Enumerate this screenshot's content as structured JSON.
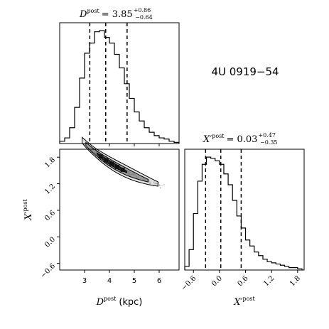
{
  "source_name": "4U 0919−54",
  "chart_data": [
    {
      "type": "histogram",
      "panel": "top-left",
      "title_var": "D",
      "title_sup": "post",
      "title_eq": "= 3.85",
      "title_err_up": "+0.86",
      "title_err_down": "−0.64",
      "xlim": [
        2.0,
        6.8
      ],
      "quantile_lines": [
        3.21,
        3.85,
        4.71
      ],
      "bin_edges": [
        2.0,
        2.2,
        2.4,
        2.6,
        2.8,
        3.0,
        3.2,
        3.4,
        3.6,
        3.8,
        4.0,
        4.2,
        4.4,
        4.6,
        4.8,
        5.0,
        5.2,
        5.4,
        5.6,
        5.8,
        6.0,
        6.2,
        6.4,
        6.6,
        6.8
      ],
      "counts": [
        2,
        5,
        14,
        32,
        58,
        80,
        89,
        99,
        100,
        94,
        89,
        79,
        67,
        53,
        40,
        28,
        20,
        14,
        10,
        7,
        5,
        4,
        2,
        1
      ]
    },
    {
      "type": "histogram",
      "panel": "bottom-right",
      "title_var": "X′",
      "title_sup": "post",
      "title_eq": "= 0.03",
      "title_err_up": "+0.47",
      "title_err_down": "−0.35",
      "xlim": [
        -0.8,
        1.95
      ],
      "xticks": [
        {
          "v": -0.6,
          "label": "−0.6"
        },
        {
          "v": 0.0,
          "label": "0.0"
        },
        {
          "v": 0.6,
          "label": "0.6"
        },
        {
          "v": 1.2,
          "label": "1.2"
        },
        {
          "v": 1.8,
          "label": "1.8"
        }
      ],
      "xlabel_var": "X′",
      "xlabel_sup": "post",
      "quantile_lines": [
        -0.32,
        0.03,
        0.5
      ],
      "bin_edges": [
        -0.8,
        -0.7,
        -0.6,
        -0.5,
        -0.4,
        -0.3,
        -0.2,
        -0.1,
        0.0,
        0.1,
        0.2,
        0.3,
        0.4,
        0.5,
        0.6,
        0.7,
        0.8,
        0.9,
        1.0,
        1.1,
        1.2,
        1.3,
        1.4,
        1.5,
        1.6,
        1.7,
        1.8,
        1.9
      ],
      "counts": [
        3,
        17,
        47,
        74,
        88,
        94,
        93,
        91,
        88,
        80,
        71,
        58,
        45,
        35,
        25,
        20,
        15,
        12,
        9,
        7,
        6,
        5,
        4,
        3,
        2,
        2,
        1
      ]
    },
    {
      "type": "scatter-density",
      "panel": "bottom-left",
      "xlim": [
        2.0,
        6.8
      ],
      "ylim": [
        -0.75,
        1.98
      ],
      "xticks": [
        {
          "v": 3,
          "label": "3"
        },
        {
          "v": 4,
          "label": "4"
        },
        {
          "v": 5,
          "label": "5"
        },
        {
          "v": 6,
          "label": "6"
        }
      ],
      "yticks": [
        {
          "v": -0.6,
          "label": "−0.6"
        },
        {
          "v": 0.0,
          "label": "0.0"
        },
        {
          "v": 0.6,
          "label": "0.6"
        },
        {
          "v": 1.2,
          "label": "1.2"
        },
        {
          "v": 1.8,
          "label": "1.8"
        }
      ],
      "xlabel_var": "D",
      "xlabel_sup": "post",
      "xlabel_unit": "(kpc)",
      "ylabel_var": "X′",
      "ylabel_sup": "post",
      "ridge": {
        "a": 5.3,
        "k": 0.66,
        "c": -0.44,
        "min_x": 2.35
      }
    }
  ]
}
